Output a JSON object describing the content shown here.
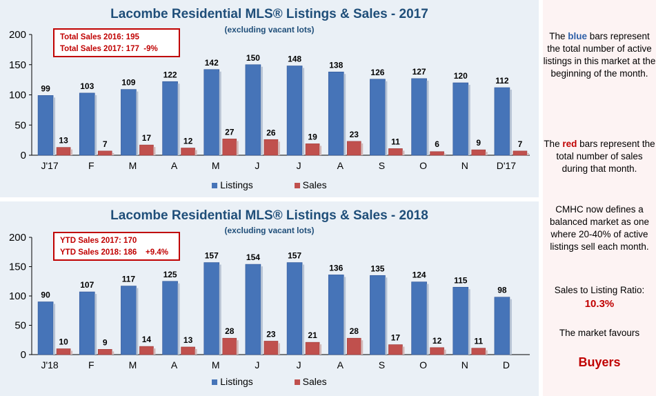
{
  "chart_data": [
    {
      "type": "bar",
      "title": "Lacombe Residential MLS® Listings & Sales - 2017",
      "subtitle": "(excluding vacant lots)",
      "categories": [
        "J'17",
        "F",
        "M",
        "A",
        "M",
        "J",
        "J",
        "A",
        "S",
        "O",
        "N",
        "D'17"
      ],
      "series": [
        {
          "name": "Listings",
          "values": [
            99,
            103,
            109,
            122,
            142,
            150,
            148,
            138,
            126,
            127,
            120,
            112
          ]
        },
        {
          "name": "Sales",
          "values": [
            13,
            7,
            17,
            12,
            27,
            26,
            19,
            23,
            11,
            6,
            9,
            7
          ]
        }
      ],
      "ylim": [
        0,
        200
      ],
      "yticks": [
        0,
        50,
        100,
        150,
        200
      ],
      "legend": "bottom",
      "colors": {
        "Listings": "#4674b8",
        "Sales": "#c0504d"
      },
      "callout": [
        "Total Sales 2016: 195",
        "Total Sales 2017: 177  -9%"
      ]
    },
    {
      "type": "bar",
      "title": "Lacombe Residential MLS® Listings & Sales - 2018",
      "subtitle": "(excluding vacant lots)",
      "categories": [
        "J'18",
        "F",
        "M",
        "A",
        "M",
        "J",
        "J",
        "A",
        "S",
        "O",
        "N",
        "D"
      ],
      "series": [
        {
          "name": "Listings",
          "values": [
            90,
            107,
            117,
            125,
            157,
            154,
            157,
            136,
            135,
            124,
            115,
            98
          ]
        },
        {
          "name": "Sales",
          "values": [
            10,
            9,
            14,
            13,
            28,
            23,
            21,
            28,
            17,
            12,
            11,
            null
          ]
        }
      ],
      "ylim": [
        0,
        200
      ],
      "yticks": [
        0,
        50,
        100,
        150,
        200
      ],
      "legend": "bottom",
      "colors": {
        "Listings": "#4674b8",
        "Sales": "#c0504d"
      },
      "callout": [
        "YTD Sales 2017: 170",
        "YTD Sales 2018: 186    +9.4%"
      ]
    }
  ],
  "sidebar": {
    "p1_a": "The ",
    "p1_blue": "blue",
    "p1_b": " bars represent the total number of active listings in this market at the beginning of the month.",
    "p2_a": "The ",
    "p2_red": "red",
    "p2_b": " bars represent the total number of sales during that month.",
    "p3": "CMHC now defines a balanced market as one where 20-40% of active listings sell each month.",
    "ratio_label": "Sales to Listing Ratio:",
    "ratio_value": "10.3%",
    "favours_label": "The market favours",
    "favours_value": "Buyers"
  }
}
